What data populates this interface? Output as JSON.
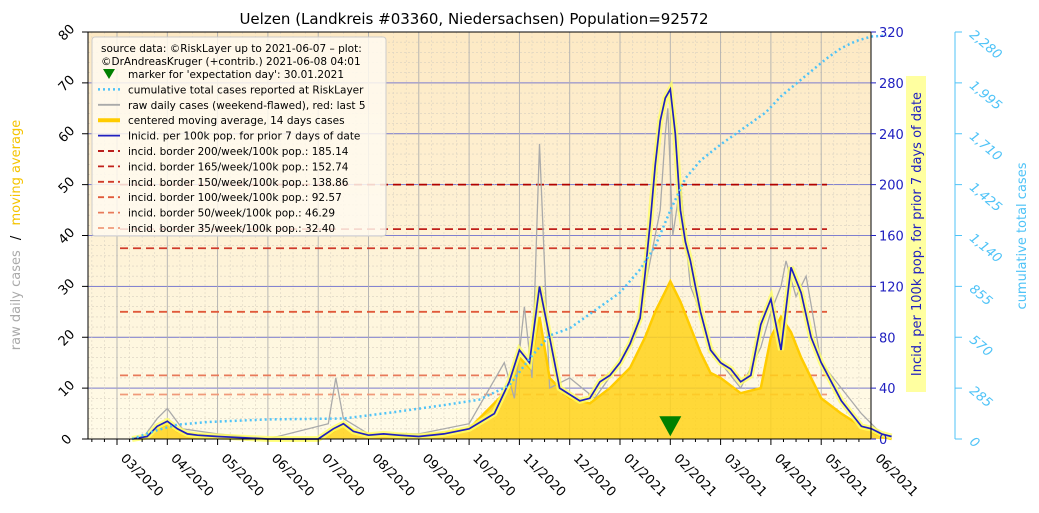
{
  "chart_data": {
    "type": "line",
    "title": "Uelzen (Landkreis #03360, Niedersachsen) Population=92572",
    "ylabel_left": [
      "raw daily cases",
      "/",
      "moving average"
    ],
    "ylabel_right_1": "Incid. per 100k pop. for prior 7 days of date",
    "ylabel_right_2": "cumulative total cases",
    "ylim_left": [
      0,
      80
    ],
    "ylim_incidence": [
      0,
      320
    ],
    "ylim_cumulative": [
      0,
      2280
    ],
    "yticks_left": [
      "0",
      "10",
      "20",
      "30",
      "40",
      "50",
      "60",
      "70",
      "80"
    ],
    "yticks_incidence": [
      "0",
      "40",
      "80",
      "120",
      "160",
      "200",
      "240",
      "280",
      "320"
    ],
    "yticks_cumulative": [
      "0",
      "285",
      "570",
      "855",
      "1,140",
      "1,425",
      "1,710",
      "1,995",
      "2,280"
    ],
    "xticks": [
      "03/2020",
      "04/2020",
      "05/2020",
      "06/2020",
      "07/2020",
      "08/2020",
      "09/2020",
      "10/2020",
      "11/2020",
      "12/2020",
      "01/2021",
      "02/2021",
      "03/2021",
      "04/2021",
      "05/2021",
      "06/2021"
    ],
    "legend_position": "top-left",
    "grid": true,
    "legend": [
      {
        "label": "source data: ©RiskLayer up to 2021-06-07 – plot:\n©DrAndreasKruger (+contrib.) 2021-06-08 04:01",
        "style": "text"
      },
      {
        "label": "marker for 'expectation day': 30.01.2021",
        "style": "triangle",
        "color": "#008000"
      },
      {
        "label": "cumulative total cases reported at RiskLayer",
        "style": "dotted",
        "color": "#4fc3f7"
      },
      {
        "label": "raw daily cases (weekend-flawed), red: last 5",
        "style": "line",
        "color": "#aaaaaa"
      },
      {
        "label": "centered moving average, 14 days cases",
        "style": "thick",
        "color": "#ffcc00"
      },
      {
        "label": "Inicid. per 100k pop. for prior 7 days of date",
        "style": "line",
        "color": "#2020c0"
      },
      {
        "label": "incid. border 200/week/100k pop.: 185.14",
        "style": "dashed",
        "color": "#b00000"
      },
      {
        "label": "incid. border 165/week/100k pop.: 152.74",
        "style": "dashed",
        "color": "#c0201a"
      },
      {
        "label": "incid. border 150/week/100k pop.: 138.86",
        "style": "dashed",
        "color": "#d03a2a"
      },
      {
        "label": "incid. border 100/week/100k pop.: 92.57",
        "style": "dashed",
        "color": "#e05a3a"
      },
      {
        "label": "incid. border   50/week/100k pop.: 46.29",
        "style": "dashed",
        "color": "#e87a5a"
      },
      {
        "label": "incid. border   35/week/100k pop.: 32.40",
        "style": "dashed",
        "color": "#f09a7a"
      }
    ],
    "borders_left_units": [
      50,
      41.25,
      37.5,
      25,
      12.5,
      8.75
    ],
    "border_colors": [
      "#b00000",
      "#c0201a",
      "#d03a2a",
      "#e05a3a",
      "#e87a5a",
      "#f09a7a"
    ],
    "expectation_marker": {
      "date": "30.01.2021",
      "month_index": 11.0,
      "value": 2.5
    },
    "incidence_series": {
      "name": "Inicid. per 100k pop. for prior 7 days of date",
      "color": "#2020c0",
      "x_month_index": [
        0.3,
        0.6,
        0.8,
        1.0,
        1.2,
        1.4,
        1.6,
        2.0,
        2.5,
        3.0,
        3.5,
        4.0,
        4.3,
        4.5,
        4.7,
        5.0,
        5.3,
        5.6,
        6.0,
        6.5,
        7.0,
        7.5,
        7.8,
        8.0,
        8.2,
        8.4,
        8.6,
        8.8,
        9.0,
        9.2,
        9.4,
        9.6,
        9.8,
        10.0,
        10.2,
        10.4,
        10.5,
        10.6,
        10.7,
        10.8,
        10.9,
        11.0,
        11.1,
        11.2,
        11.3,
        11.4,
        11.5,
        11.6,
        11.8,
        12.0,
        12.2,
        12.4,
        12.6,
        12.8,
        13.0,
        13.2,
        13.4,
        13.6,
        13.8,
        14.0,
        14.2,
        14.4,
        14.6,
        14.8,
        15.0,
        15.2,
        15.4
      ],
      "y": [
        0,
        2,
        10,
        14,
        8,
        4,
        3,
        2,
        1,
        0,
        0,
        0,
        8,
        12,
        6,
        3,
        4,
        3,
        2,
        4,
        8,
        20,
        45,
        70,
        60,
        120,
        80,
        40,
        35,
        30,
        32,
        45,
        50,
        60,
        75,
        95,
        130,
        170,
        215,
        250,
        268,
        275,
        240,
        180,
        155,
        140,
        120,
        100,
        70,
        60,
        55,
        45,
        50,
        90,
        110,
        70,
        135,
        115,
        80,
        60,
        45,
        30,
        20,
        10,
        8,
        4,
        2
      ]
    },
    "moving_average_series": {
      "name": "centered moving average, 14 days cases",
      "color": "#ffcc00",
      "x_month_index": [
        0.3,
        0.6,
        0.8,
        1.0,
        1.2,
        1.4,
        2.0,
        3.0,
        4.0,
        4.3,
        4.5,
        4.8,
        5.2,
        6.0,
        7.0,
        7.8,
        8.0,
        8.2,
        8.4,
        8.6,
        9.0,
        9.4,
        9.8,
        10.2,
        10.5,
        10.7,
        10.9,
        11.0,
        11.2,
        11.4,
        11.6,
        11.8,
        12.0,
        12.4,
        12.8,
        13.0,
        13.2,
        13.4,
        13.6,
        13.8,
        14.0,
        14.4,
        14.8,
        15.2,
        15.4
      ],
      "y": [
        0,
        0.5,
        2,
        3,
        1.5,
        1,
        0.5,
        0,
        0,
        1.5,
        3,
        1,
        0.8,
        0.5,
        2,
        10,
        16,
        14,
        24,
        12,
        8,
        7,
        10,
        14,
        20,
        25,
        29,
        31,
        27,
        22,
        17,
        13,
        12,
        9,
        10,
        20,
        24,
        21,
        16,
        12,
        8,
        5,
        2.5,
        0.5,
        0
      ]
    },
    "raw_daily_series": {
      "name": "raw daily cases (weekend-flawed), red: last 5",
      "color": "#aaaaaa",
      "x_month_index": [
        0.5,
        0.8,
        1.0,
        1.3,
        2.0,
        3.0,
        4.2,
        4.35,
        4.5,
        5.0,
        6.0,
        7.0,
        7.7,
        7.9,
        8.1,
        8.25,
        8.4,
        8.6,
        9.0,
        9.5,
        10.0,
        10.3,
        10.6,
        10.8,
        10.9,
        10.95,
        11.05,
        11.2,
        11.4,
        11.6,
        11.8,
        12.0,
        12.4,
        12.8,
        13.0,
        13.2,
        13.3,
        13.5,
        13.7,
        14.0,
        14.4,
        14.8,
        15.2
      ],
      "y": [
        0,
        4,
        6,
        2,
        1,
        0,
        3,
        12,
        4,
        1,
        1,
        3,
        15,
        8,
        26,
        12,
        58,
        10,
        12,
        8,
        15,
        20,
        35,
        45,
        60,
        65,
        40,
        50,
        30,
        25,
        18,
        15,
        10,
        18,
        25,
        30,
        35,
        28,
        32,
        15,
        10,
        5,
        1
      ]
    },
    "cumulative_series": {
      "name": "cumulative total cases reported at RiskLayer",
      "color": "#4fc3f7",
      "x_month_index": [
        0.3,
        0.8,
        1.2,
        1.8,
        3.0,
        4.5,
        5.5,
        6.5,
        7.2,
        7.8,
        8.2,
        8.6,
        9.0,
        9.5,
        10.0,
        10.4,
        10.7,
        11.0,
        11.3,
        11.6,
        12.0,
        12.5,
        12.9,
        13.2,
        13.5,
        13.8,
        14.1,
        14.4,
        14.7,
        15.0,
        15.3
      ],
      "y": [
        0,
        50,
        80,
        95,
        110,
        115,
        150,
        190,
        220,
        300,
        450,
        580,
        620,
        720,
        820,
        950,
        1080,
        1280,
        1460,
        1560,
        1650,
        1750,
        1830,
        1920,
        1990,
        2060,
        2130,
        2190,
        2230,
        2255,
        2260
      ]
    }
  }
}
